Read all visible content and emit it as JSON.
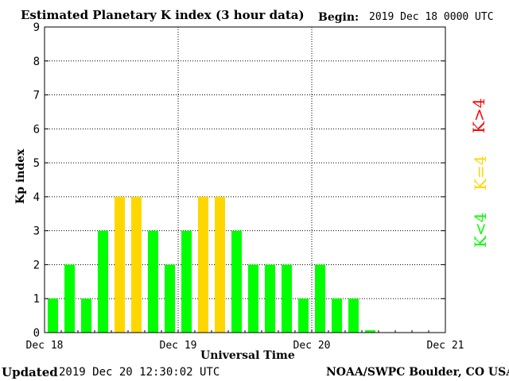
{
  "chart_data": {
    "type": "bar",
    "title": "Estimated Planetary K index (3 hour data)",
    "begin_label": "Begin:",
    "begin_value": "2019 Dec 18 0000 UTC",
    "ylabel": "Kp index",
    "xlabel": "Universal Time",
    "ylim": [
      0,
      9
    ],
    "yticks": [
      "0",
      "1",
      "2",
      "3",
      "4",
      "5",
      "6",
      "7",
      "8",
      "9"
    ],
    "xticks": [
      "Dec 18",
      "Dec 19",
      "Dec 20",
      "Dec 21"
    ],
    "grid": true,
    "slots_total": 24,
    "values": [
      1,
      2,
      1,
      3,
      4,
      4,
      3,
      2,
      3,
      4,
      4,
      3,
      2,
      2,
      2,
      1,
      2,
      1,
      1,
      0.067
    ],
    "legend": [
      {
        "label": "K<4",
        "color": "#00ff00"
      },
      {
        "label": "K=4",
        "color": "#ffd700"
      },
      {
        "label": "K>4",
        "color": "#ff0000"
      }
    ]
  },
  "footer": {
    "updated_label": "Updated",
    "updated_value": "2019 Dec 20 12:30:02 UTC",
    "credit": "NOAA/SWPC Boulder, CO USA"
  }
}
